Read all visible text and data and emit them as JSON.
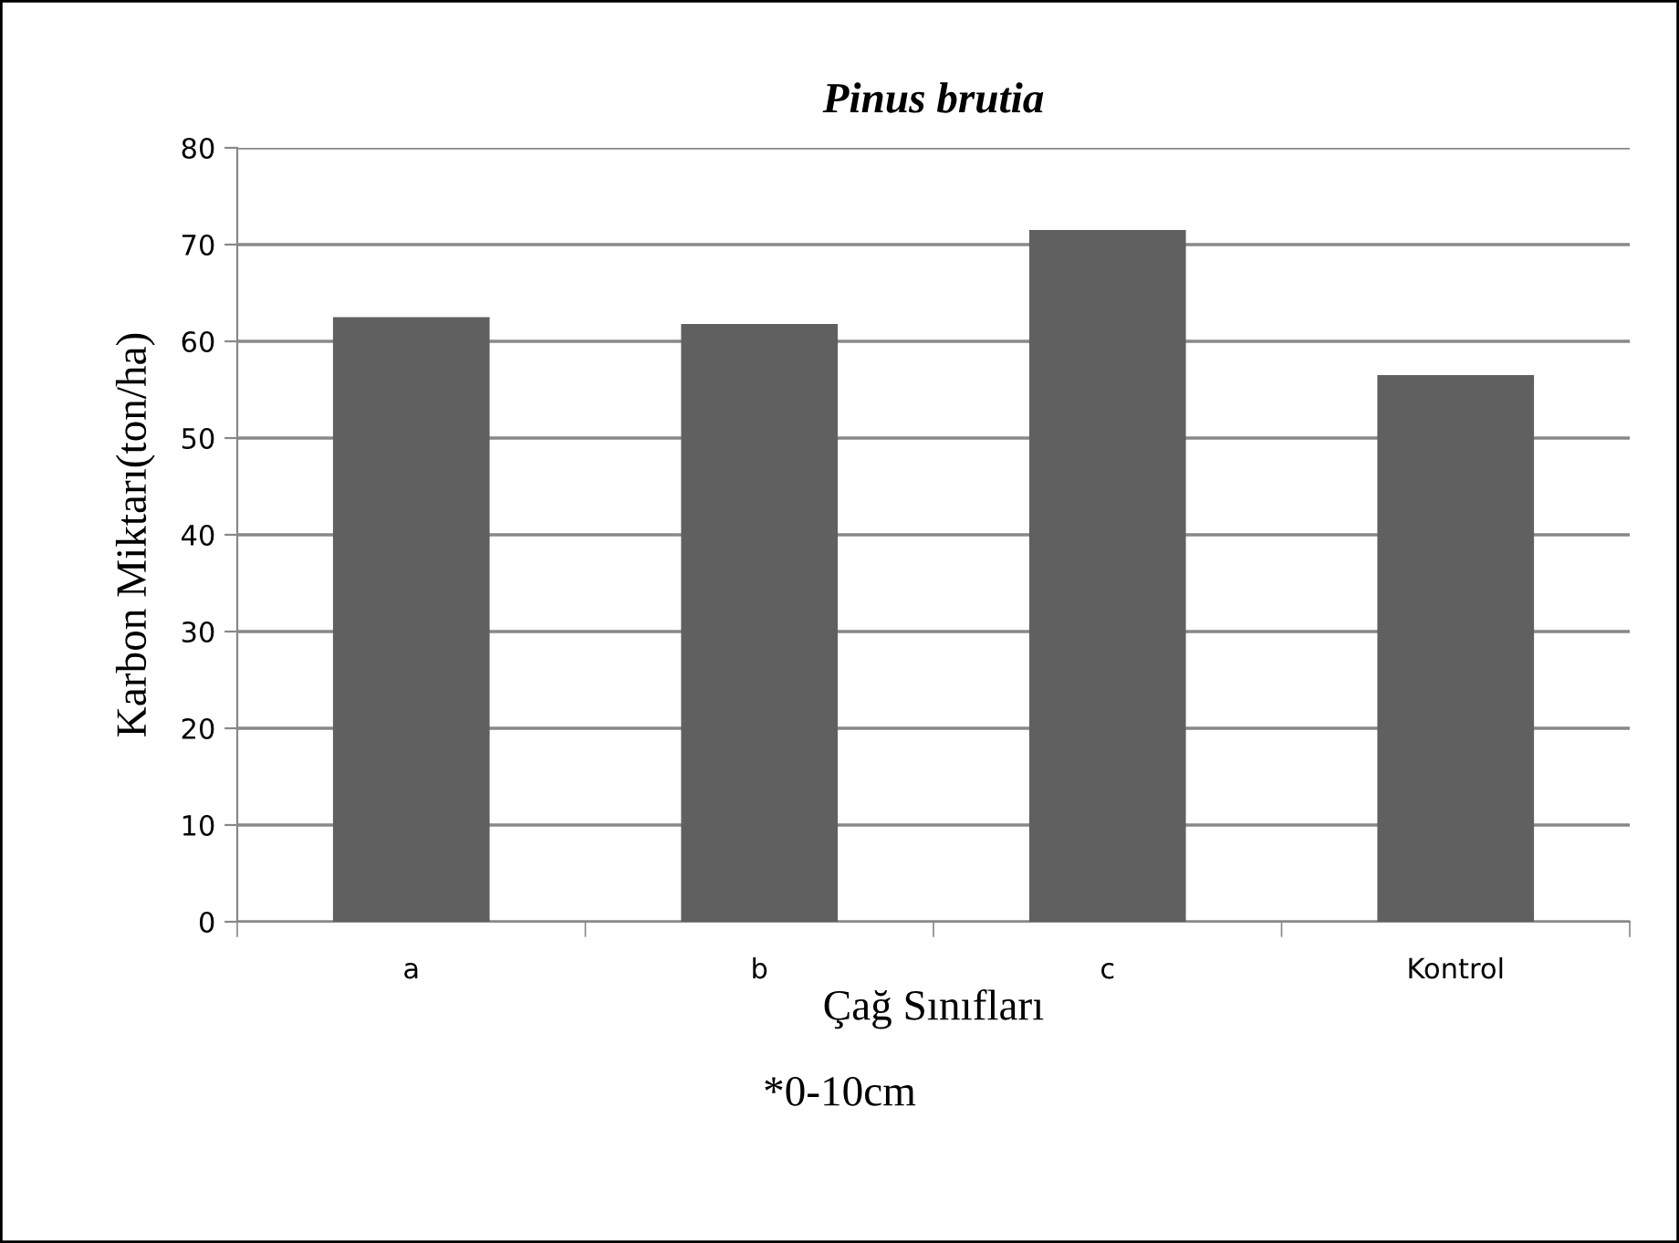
{
  "chart_data": {
    "type": "bar",
    "title": "Pinus brutia",
    "xlabel": "Çağ Sınıfları",
    "ylabel": "Karbon Miktarı(ton/ha)",
    "categories": [
      "a",
      "b",
      "c",
      "Kontrol"
    ],
    "values": [
      62.5,
      61.8,
      71.5,
      56.5
    ],
    "color": "#606060",
    "ylim": [
      0,
      80
    ],
    "yticks": [
      0,
      10,
      20,
      30,
      40,
      50,
      60,
      70,
      80
    ],
    "grid": "y",
    "annotations": [
      "*0-10cm"
    ]
  }
}
